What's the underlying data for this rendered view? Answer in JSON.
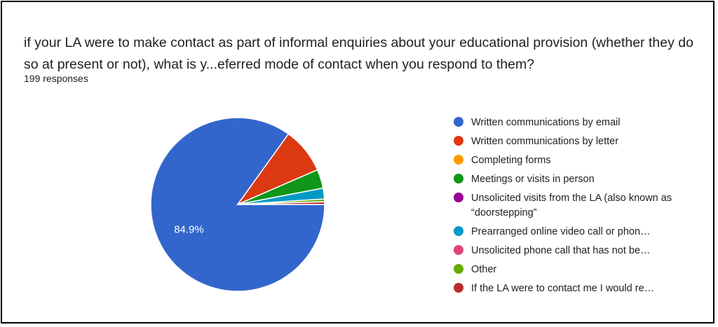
{
  "title": "if your LA were to make contact as part of informal enquiries about your educational provision (whether they do so at present or not),  what is y...eferred mode of contact when you respond to them?",
  "subtitle": "199 responses",
  "chart_data": {
    "type": "pie",
    "title": "if your LA were to make contact as part of informal enquiries about your educational provision (whether they do so at present or not),  what is y...eferred mode of contact when you respond to them?",
    "total_responses": 199,
    "legend_position": "right",
    "slice_labels": [
      "84.9%",
      "",
      "",
      "",
      "",
      "",
      "",
      "",
      ""
    ],
    "categories": [
      "Written communications by email",
      "Written communications by letter",
      "Completing forms",
      "Meetings or visits in person",
      "Unsolicited visits from the LA (also known as “doorstepping”",
      "Prearranged online video call or phon…",
      "Unsolicited phone call that has not be…",
      "Other",
      "If the LA were to contact me I would re…"
    ],
    "values": [
      169,
      17,
      0,
      7,
      0,
      4,
      0,
      1,
      1
    ],
    "colors": [
      "#3366cc",
      "#dc3912",
      "#ff9900",
      "#109618",
      "#990099",
      "#0099c6",
      "#dd4477",
      "#66aa00",
      "#b82e2e"
    ]
  }
}
